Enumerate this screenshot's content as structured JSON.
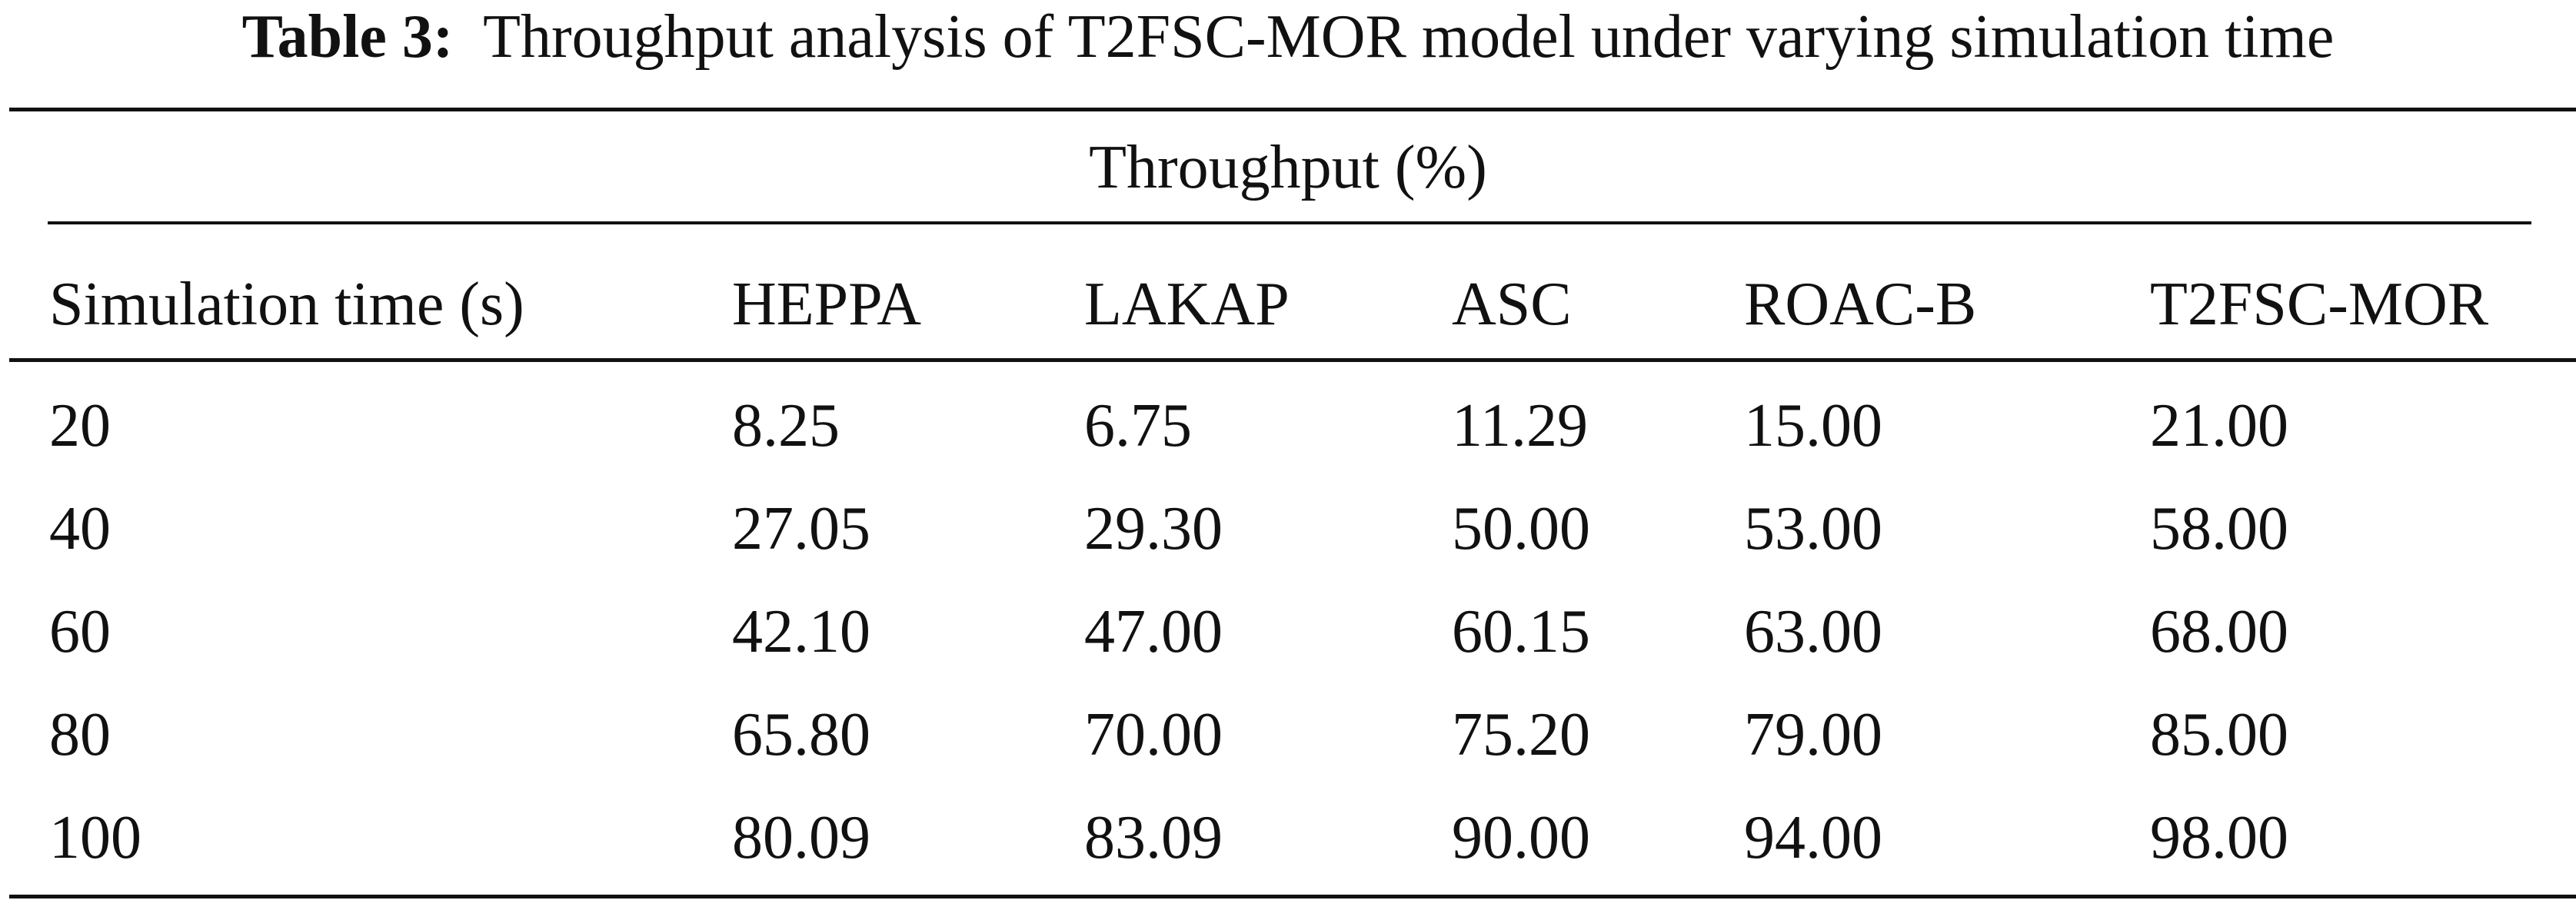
{
  "caption": {
    "label": "Table 3:",
    "text": "Throughput analysis of T2FSC-MOR model under varying simulation time"
  },
  "table": {
    "group_header": "Throughput (%)",
    "columns": [
      "Simulation time (s)",
      "HEPPA",
      "LAKAP",
      "ASC",
      "ROAC-B",
      "T2FSC-MOR"
    ],
    "rows": [
      [
        "20",
        "8.25",
        "6.75",
        "11.29",
        "15.00",
        "21.00"
      ],
      [
        "40",
        "27.05",
        "29.30",
        "50.00",
        "53.00",
        "58.00"
      ],
      [
        "60",
        "42.10",
        "47.00",
        "60.15",
        "63.00",
        "68.00"
      ],
      [
        "80",
        "65.80",
        "70.00",
        "75.20",
        "79.00",
        "85.00"
      ],
      [
        "100",
        "80.09",
        "83.09",
        "90.00",
        "94.00",
        "98.00"
      ]
    ]
  }
}
